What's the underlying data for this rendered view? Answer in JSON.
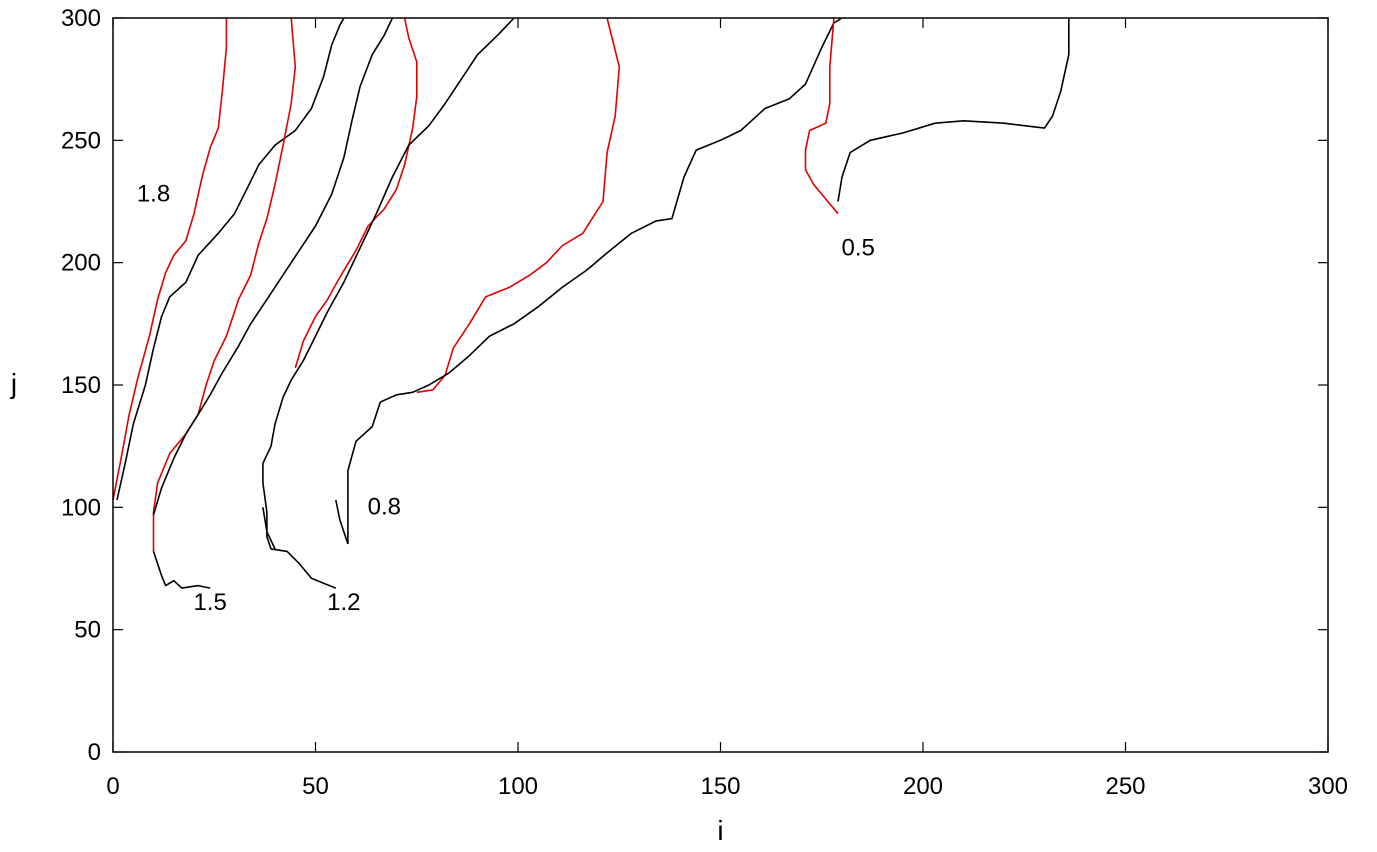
{
  "chart_data": {
    "type": "line",
    "title": "",
    "xlabel": "i",
    "ylabel": "j",
    "xlim": [
      0,
      300
    ],
    "ylim": [
      0,
      300
    ],
    "xticks": [
      0,
      50,
      100,
      150,
      200,
      250,
      300
    ],
    "yticks": [
      0,
      50,
      100,
      150,
      200,
      250,
      300
    ],
    "grid": false,
    "legend": "none",
    "colors": {
      "black": "#000000",
      "red": "#e00000"
    },
    "series": [
      {
        "color": "red",
        "points": [
          [
            0,
            103
          ],
          [
            2,
            120
          ],
          [
            4,
            138
          ],
          [
            6,
            152
          ],
          [
            9,
            170
          ],
          [
            11,
            185
          ],
          [
            13,
            196
          ],
          [
            15,
            203
          ],
          [
            18,
            209
          ],
          [
            20,
            220
          ],
          [
            22,
            235
          ],
          [
            24,
            247
          ],
          [
            26,
            255
          ],
          [
            27,
            270
          ],
          [
            28,
            288
          ],
          [
            28,
            300
          ]
        ]
      },
      {
        "color": "black",
        "points": [
          [
            1,
            103
          ],
          [
            3,
            118
          ],
          [
            5,
            134
          ],
          [
            8,
            150
          ],
          [
            10,
            165
          ],
          [
            12,
            178
          ],
          [
            14,
            186
          ],
          [
            18,
            192
          ],
          [
            21,
            203
          ],
          [
            26,
            212
          ],
          [
            30,
            220
          ],
          [
            33,
            230
          ],
          [
            36,
            240
          ],
          [
            40,
            248
          ],
          [
            45,
            254
          ],
          [
            49,
            263
          ],
          [
            52,
            276
          ],
          [
            54,
            289
          ],
          [
            56,
            297
          ],
          [
            57,
            300
          ]
        ]
      },
      {
        "color": "red",
        "points": [
          [
            10,
            82
          ],
          [
            10,
            98
          ],
          [
            11,
            110
          ],
          [
            14,
            122
          ],
          [
            18,
            130
          ],
          [
            21,
            138
          ],
          [
            23,
            150
          ],
          [
            25,
            160
          ],
          [
            28,
            170
          ],
          [
            31,
            185
          ],
          [
            34,
            195
          ],
          [
            36,
            208
          ],
          [
            38,
            218
          ],
          [
            40,
            232
          ],
          [
            42,
            248
          ],
          [
            44,
            265
          ],
          [
            45,
            280
          ],
          [
            44,
            300
          ]
        ]
      },
      {
        "color": "black",
        "points": [
          [
            10,
            82
          ],
          [
            12,
            72
          ],
          [
            13,
            68
          ],
          [
            15,
            70
          ],
          [
            17,
            67
          ],
          [
            21,
            68
          ],
          [
            24,
            67
          ]
        ]
      },
      {
        "color": "black",
        "points": [
          [
            10,
            97
          ],
          [
            12,
            108
          ],
          [
            15,
            120
          ],
          [
            18,
            130
          ],
          [
            21,
            138
          ],
          [
            24,
            146
          ],
          [
            27,
            155
          ],
          [
            31,
            166
          ],
          [
            34,
            175
          ],
          [
            38,
            185
          ],
          [
            42,
            195
          ],
          [
            46,
            205
          ],
          [
            50,
            215
          ],
          [
            54,
            228
          ],
          [
            57,
            243
          ],
          [
            59,
            258
          ],
          [
            61,
            272
          ],
          [
            64,
            285
          ],
          [
            67,
            293
          ],
          [
            69,
            300
          ]
        ]
      },
      {
        "color": "red",
        "points": [
          [
            45,
            157
          ],
          [
            47,
            168
          ],
          [
            50,
            178
          ],
          [
            53,
            185
          ],
          [
            56,
            194
          ],
          [
            60,
            205
          ],
          [
            63,
            215
          ],
          [
            67,
            222
          ],
          [
            70,
            230
          ],
          [
            72,
            240
          ],
          [
            74,
            255
          ],
          [
            75,
            268
          ],
          [
            75,
            282
          ],
          [
            73,
            292
          ],
          [
            72,
            300
          ]
        ]
      },
      {
        "color": "black",
        "points": [
          [
            37,
            118
          ],
          [
            39,
            125
          ],
          [
            40,
            134
          ],
          [
            42,
            145
          ],
          [
            44,
            152
          ],
          [
            47,
            160
          ],
          [
            50,
            170
          ],
          [
            53,
            180
          ],
          [
            57,
            192
          ],
          [
            61,
            206
          ],
          [
            65,
            220
          ],
          [
            69,
            235
          ],
          [
            73,
            248
          ],
          [
            78,
            256
          ],
          [
            82,
            265
          ],
          [
            86,
            275
          ],
          [
            90,
            285
          ],
          [
            95,
            293
          ],
          [
            99,
            300
          ]
        ]
      },
      {
        "color": "black",
        "points": [
          [
            37,
            118
          ],
          [
            37,
            110
          ],
          [
            38,
            98
          ],
          [
            38,
            88
          ],
          [
            39,
            83
          ],
          [
            43,
            82
          ],
          [
            46,
            77
          ],
          [
            49,
            71
          ],
          [
            52,
            69
          ],
          [
            55,
            67
          ]
        ]
      },
      {
        "color": "red",
        "points": [
          [
            75,
            147
          ],
          [
            79,
            148
          ],
          [
            82,
            154
          ],
          [
            84,
            165
          ],
          [
            88,
            175
          ],
          [
            92,
            186
          ],
          [
            98,
            190
          ],
          [
            103,
            195
          ],
          [
            107,
            200
          ],
          [
            111,
            207
          ],
          [
            116,
            212
          ],
          [
            121,
            225
          ],
          [
            122,
            245
          ],
          [
            124,
            260
          ],
          [
            125,
            280
          ],
          [
            122,
            300
          ]
        ]
      },
      {
        "color": "black",
        "points": [
          [
            58,
            85
          ],
          [
            58,
            100
          ],
          [
            58,
            115
          ],
          [
            60,
            127
          ],
          [
            64,
            133
          ],
          [
            66,
            143
          ],
          [
            70,
            146
          ],
          [
            74,
            147
          ],
          [
            78,
            150
          ],
          [
            83,
            155
          ],
          [
            88,
            162
          ],
          [
            93,
            170
          ],
          [
            99,
            175
          ],
          [
            105,
            182
          ],
          [
            111,
            190
          ],
          [
            117,
            197
          ],
          [
            122,
            204
          ],
          [
            128,
            212
          ],
          [
            134,
            217
          ],
          [
            138,
            218
          ],
          [
            141,
            235
          ],
          [
            144,
            246
          ],
          [
            150,
            250
          ],
          [
            155,
            254
          ],
          [
            161,
            263
          ],
          [
            167,
            267
          ],
          [
            171,
            273
          ],
          [
            175,
            288
          ],
          [
            178,
            298
          ],
          [
            180,
            300
          ]
        ]
      },
      {
        "color": "red",
        "points": [
          [
            179,
            220
          ],
          [
            176,
            226
          ],
          [
            173,
            232
          ],
          [
            171,
            238
          ],
          [
            171,
            246
          ],
          [
            172,
            254
          ],
          [
            176,
            257
          ],
          [
            177,
            265
          ],
          [
            177,
            280
          ],
          [
            178,
            300
          ]
        ]
      },
      {
        "color": "black",
        "points": [
          [
            179,
            225
          ],
          [
            180,
            235
          ],
          [
            182,
            245
          ],
          [
            187,
            250
          ],
          [
            195,
            253
          ],
          [
            203,
            257
          ],
          [
            210,
            258
          ],
          [
            220,
            257
          ],
          [
            230,
            255
          ],
          [
            232,
            260
          ],
          [
            234,
            270
          ],
          [
            236,
            285
          ],
          [
            236,
            300
          ]
        ]
      },
      {
        "color": "black",
        "points": [
          [
            58,
            85
          ],
          [
            56,
            95
          ],
          [
            55,
            103
          ]
        ]
      },
      {
        "color": "black",
        "points": [
          [
            40,
            83
          ],
          [
            38,
            90
          ],
          [
            37,
            100
          ]
        ]
      }
    ],
    "annotations": [
      {
        "text": "1.8",
        "x": 10,
        "y": 225
      },
      {
        "text": "1.5",
        "x": 24,
        "y": 58
      },
      {
        "text": "1.2",
        "x": 57,
        "y": 58
      },
      {
        "text": "0.8",
        "x": 67,
        "y": 97
      },
      {
        "text": "0.5",
        "x": 184,
        "y": 203
      }
    ]
  }
}
